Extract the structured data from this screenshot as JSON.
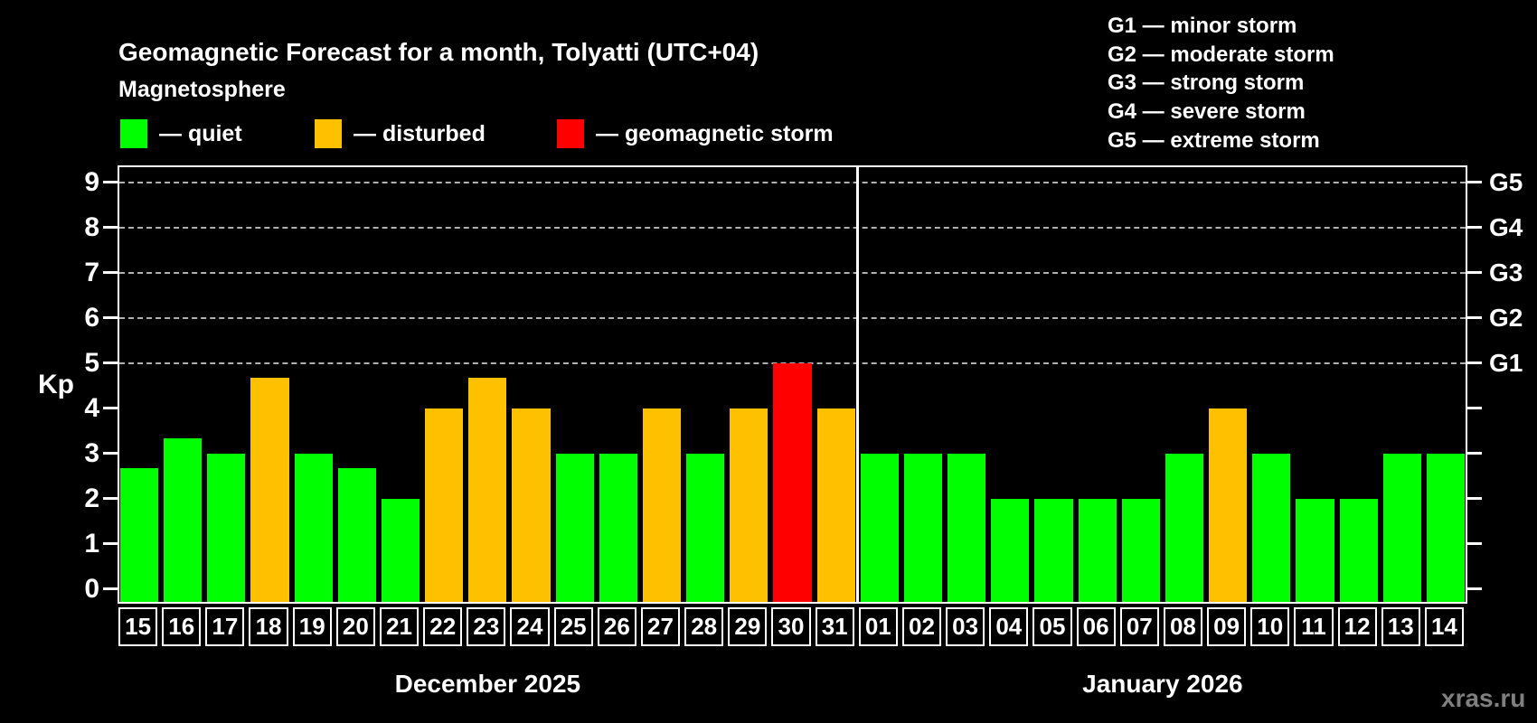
{
  "title": "Geomagnetic Forecast for a month, Tolyatti (UTC+04)",
  "subtitle": "Magnetosphere",
  "legend": {
    "items": [
      {
        "name": "quiet",
        "label": "— quiet",
        "color": "#00ff00"
      },
      {
        "name": "disturbed",
        "label": "— disturbed",
        "color": "#ffc000"
      },
      {
        "name": "storm",
        "label": "— geomagnetic storm",
        "color": "#ff0000"
      }
    ]
  },
  "g_legend": {
    "items": [
      {
        "label": "G1 — minor storm"
      },
      {
        "label": "G2 — moderate storm"
      },
      {
        "label": "G3 — strong storm"
      },
      {
        "label": "G4 — severe storm"
      },
      {
        "label": "G5 — extreme storm"
      }
    ]
  },
  "watermark": "xras.ru",
  "chart_data": {
    "type": "bar",
    "ylabel": "Kp",
    "ylim": [
      0,
      9
    ],
    "y_ticks": [
      "0",
      "1",
      "2",
      "3",
      "4",
      "5",
      "6",
      "7",
      "8",
      "9"
    ],
    "gridlines_at_kp": [
      5,
      6,
      7,
      8,
      9
    ],
    "right_axis_labels": [
      {
        "label": "G1",
        "kp": 5
      },
      {
        "label": "G2",
        "kp": 6
      },
      {
        "label": "G3",
        "kp": 7
      },
      {
        "label": "G4",
        "kp": 8
      },
      {
        "label": "G5",
        "kp": 9
      }
    ],
    "status_colors": {
      "quiet": "#00ff00",
      "disturbed": "#ffc000",
      "storm": "#ff0000"
    },
    "groups": [
      {
        "month_label": "December 2025",
        "days": [
          "15",
          "16",
          "17",
          "18",
          "19",
          "20",
          "21",
          "22",
          "23",
          "24",
          "25",
          "26",
          "27",
          "28",
          "29",
          "30",
          "31"
        ],
        "values": [
          2.67,
          3.33,
          3.0,
          4.67,
          3.0,
          2.67,
          2.0,
          4.0,
          4.67,
          4.0,
          3.0,
          3.0,
          4.0,
          3.0,
          4.0,
          5.0,
          4.0
        ],
        "status": [
          "quiet",
          "quiet",
          "quiet",
          "disturbed",
          "quiet",
          "quiet",
          "quiet",
          "disturbed",
          "disturbed",
          "disturbed",
          "quiet",
          "quiet",
          "disturbed",
          "quiet",
          "disturbed",
          "storm",
          "disturbed"
        ]
      },
      {
        "month_label": "January 2026",
        "days": [
          "01",
          "02",
          "03",
          "04",
          "05",
          "06",
          "07",
          "08",
          "09",
          "10",
          "11",
          "12",
          "13",
          "14"
        ],
        "values": [
          3.0,
          3.0,
          3.0,
          2.0,
          2.0,
          2.0,
          2.0,
          3.0,
          4.0,
          3.0,
          2.0,
          2.0,
          3.0,
          3.0
        ],
        "status": [
          "quiet",
          "quiet",
          "quiet",
          "quiet",
          "quiet",
          "quiet",
          "quiet",
          "quiet",
          "disturbed",
          "quiet",
          "quiet",
          "quiet",
          "quiet",
          "quiet"
        ]
      }
    ]
  }
}
